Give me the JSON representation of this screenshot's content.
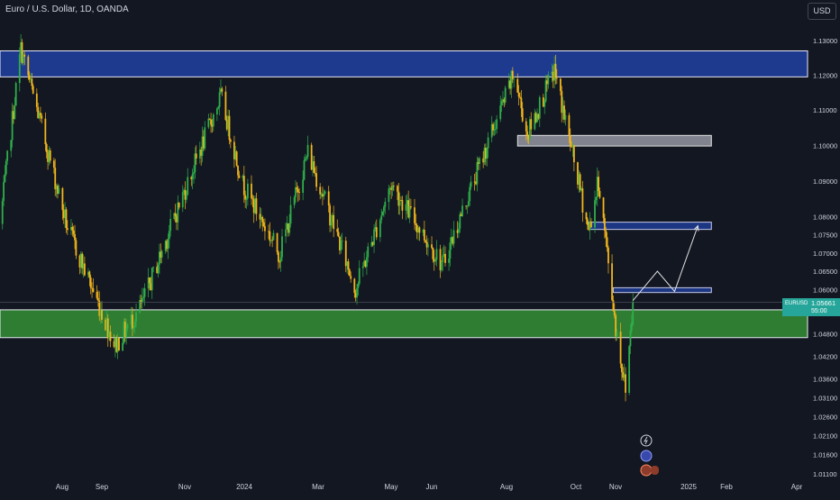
{
  "header": {
    "symbol_title": "Euro / U.S. Dollar, 1D, OANDA",
    "currency_button": "USD"
  },
  "price_tag": {
    "symbol": "EURUSD",
    "price": "1.05661",
    "countdown": "55:00",
    "color": "#26a69a"
  },
  "colors": {
    "background": "#131722",
    "up": "#2fae4a",
    "down": "#f2b51c",
    "resistance_zone": "#1e3a8f",
    "support_zone": "#2f7d32",
    "gray_zone": "#9598a1",
    "axis_text": "#d1d4dc"
  },
  "icons": [
    "lightning-icon",
    "globe-icon",
    "flag-icon"
  ],
  "chart_data": {
    "type": "candlestick",
    "title": "Euro / U.S. Dollar, 1D, OANDA",
    "y_axis": {
      "ticks": [
        "1.13000",
        "1.12000",
        "1.11000",
        "1.10000",
        "1.09000",
        "1.08000",
        "1.07500",
        "1.07000",
        "1.06500",
        "1.06000",
        "1.05500",
        "1.04800",
        "1.04200",
        "1.03600",
        "1.03100",
        "1.02600",
        "1.02100",
        "1.01600",
        "1.01100"
      ],
      "scale": "log"
    },
    "x_axis": {
      "ticks": [
        "Aug",
        "Sep",
        "Nov",
        "2024",
        "Mar",
        "May",
        "Jun",
        "Aug",
        "Oct",
        "Nov",
        "2025",
        "Feb",
        "Apr"
      ],
      "range": [
        "2023-07-01",
        "2025-04-15"
      ]
    },
    "anchor_points": [
      {
        "x": "2023-07-01",
        "y": 1.078
      },
      {
        "x": "2023-07-18",
        "y": 1.1276
      },
      {
        "x": "2023-08-25",
        "y": 1.077
      },
      {
        "x": "2023-10-03",
        "y": 1.0448
      },
      {
        "x": "2023-10-25",
        "y": 1.056
      },
      {
        "x": "2023-12-28",
        "y": 1.1139
      },
      {
        "x": "2024-01-15",
        "y": 1.089
      },
      {
        "x": "2024-02-14",
        "y": 1.0696
      },
      {
        "x": "2024-03-08",
        "y": 1.0981
      },
      {
        "x": "2024-04-16",
        "y": 1.0601
      },
      {
        "x": "2024-05-15",
        "y": 1.089
      },
      {
        "x": "2024-06-26",
        "y": 1.0667
      },
      {
        "x": "2024-08-23",
        "y": 1.1201
      },
      {
        "x": "2024-09-03",
        "y": 1.103
      },
      {
        "x": "2024-09-25",
        "y": 1.1214
      },
      {
        "x": "2024-10-23",
        "y": 1.076
      },
      {
        "x": "2024-10-31",
        "y": 1.09
      },
      {
        "x": "2024-11-14",
        "y": 1.05
      },
      {
        "x": "2024-11-22",
        "y": 1.0332
      },
      {
        "x": "2024-11-28",
        "y": 1.0566
      }
    ],
    "zones": [
      {
        "kind": "resistance",
        "from": 1.1195,
        "to": 1.127,
        "x_start": "2023-07-01"
      },
      {
        "kind": "support",
        "from": 1.047,
        "to": 1.0545,
        "x_start": "2023-07-01"
      },
      {
        "kind": "neutral",
        "from": 1.0998,
        "to": 1.1028,
        "x_start": "2024-08-26",
        "x_end": "2025-01-31"
      },
      {
        "kind": "target",
        "from": 1.0765,
        "to": 1.0785,
        "x_start": "2024-10-23",
        "x_end": "2025-01-31"
      },
      {
        "kind": "entry",
        "from": 1.0592,
        "to": 1.0605,
        "x_start": "2024-11-12",
        "x_end": "2025-01-31"
      }
    ],
    "projection": [
      {
        "x": "2024-11-28",
        "y": 1.057
      },
      {
        "x": "2024-12-18",
        "y": 1.065
      },
      {
        "x": "2025-01-01",
        "y": 1.0595
      },
      {
        "x": "2025-01-20",
        "y": 1.0775
      }
    ],
    "last_price": 1.05661
  }
}
